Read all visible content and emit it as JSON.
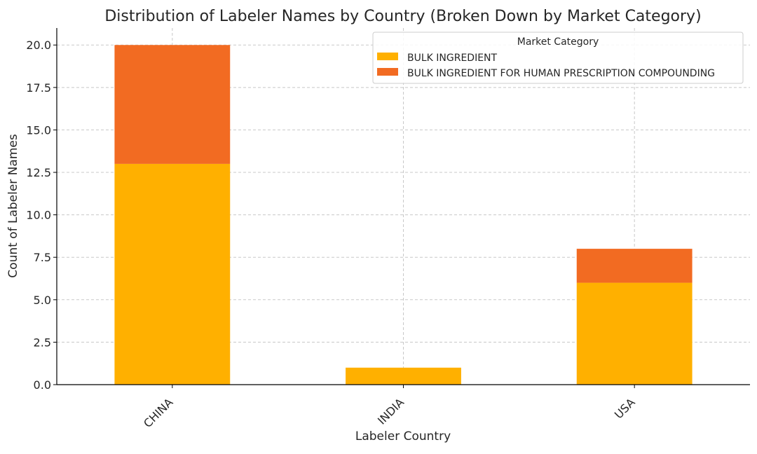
{
  "chart_data": {
    "type": "bar",
    "stacked": true,
    "title": "Distribution of Labeler Names by Country (Broken Down by Market Category)",
    "xlabel": "Labeler Country",
    "ylabel": "Count of Labeler Names",
    "categories": [
      "CHINA",
      "INDIA",
      "USA"
    ],
    "series": [
      {
        "name": "BULK INGREDIENT",
        "values": [
          13,
          1,
          6
        ],
        "color": "#FFB000"
      },
      {
        "name": "BULK INGREDIENT FOR HUMAN PRESCRIPTION COMPOUNDING",
        "values": [
          7,
          0,
          2
        ],
        "color": "#F26B22"
      }
    ],
    "ylim": [
      0,
      21
    ],
    "yticks": [
      "0.0",
      "2.5",
      "5.0",
      "7.5",
      "10.0",
      "12.5",
      "15.0",
      "17.5",
      "20.0"
    ],
    "ytick_values": [
      0,
      2.5,
      5,
      7.5,
      10,
      12.5,
      15,
      17.5,
      20
    ],
    "grid": true,
    "legend": {
      "title": "Market Category",
      "placement": "top-right"
    }
  }
}
